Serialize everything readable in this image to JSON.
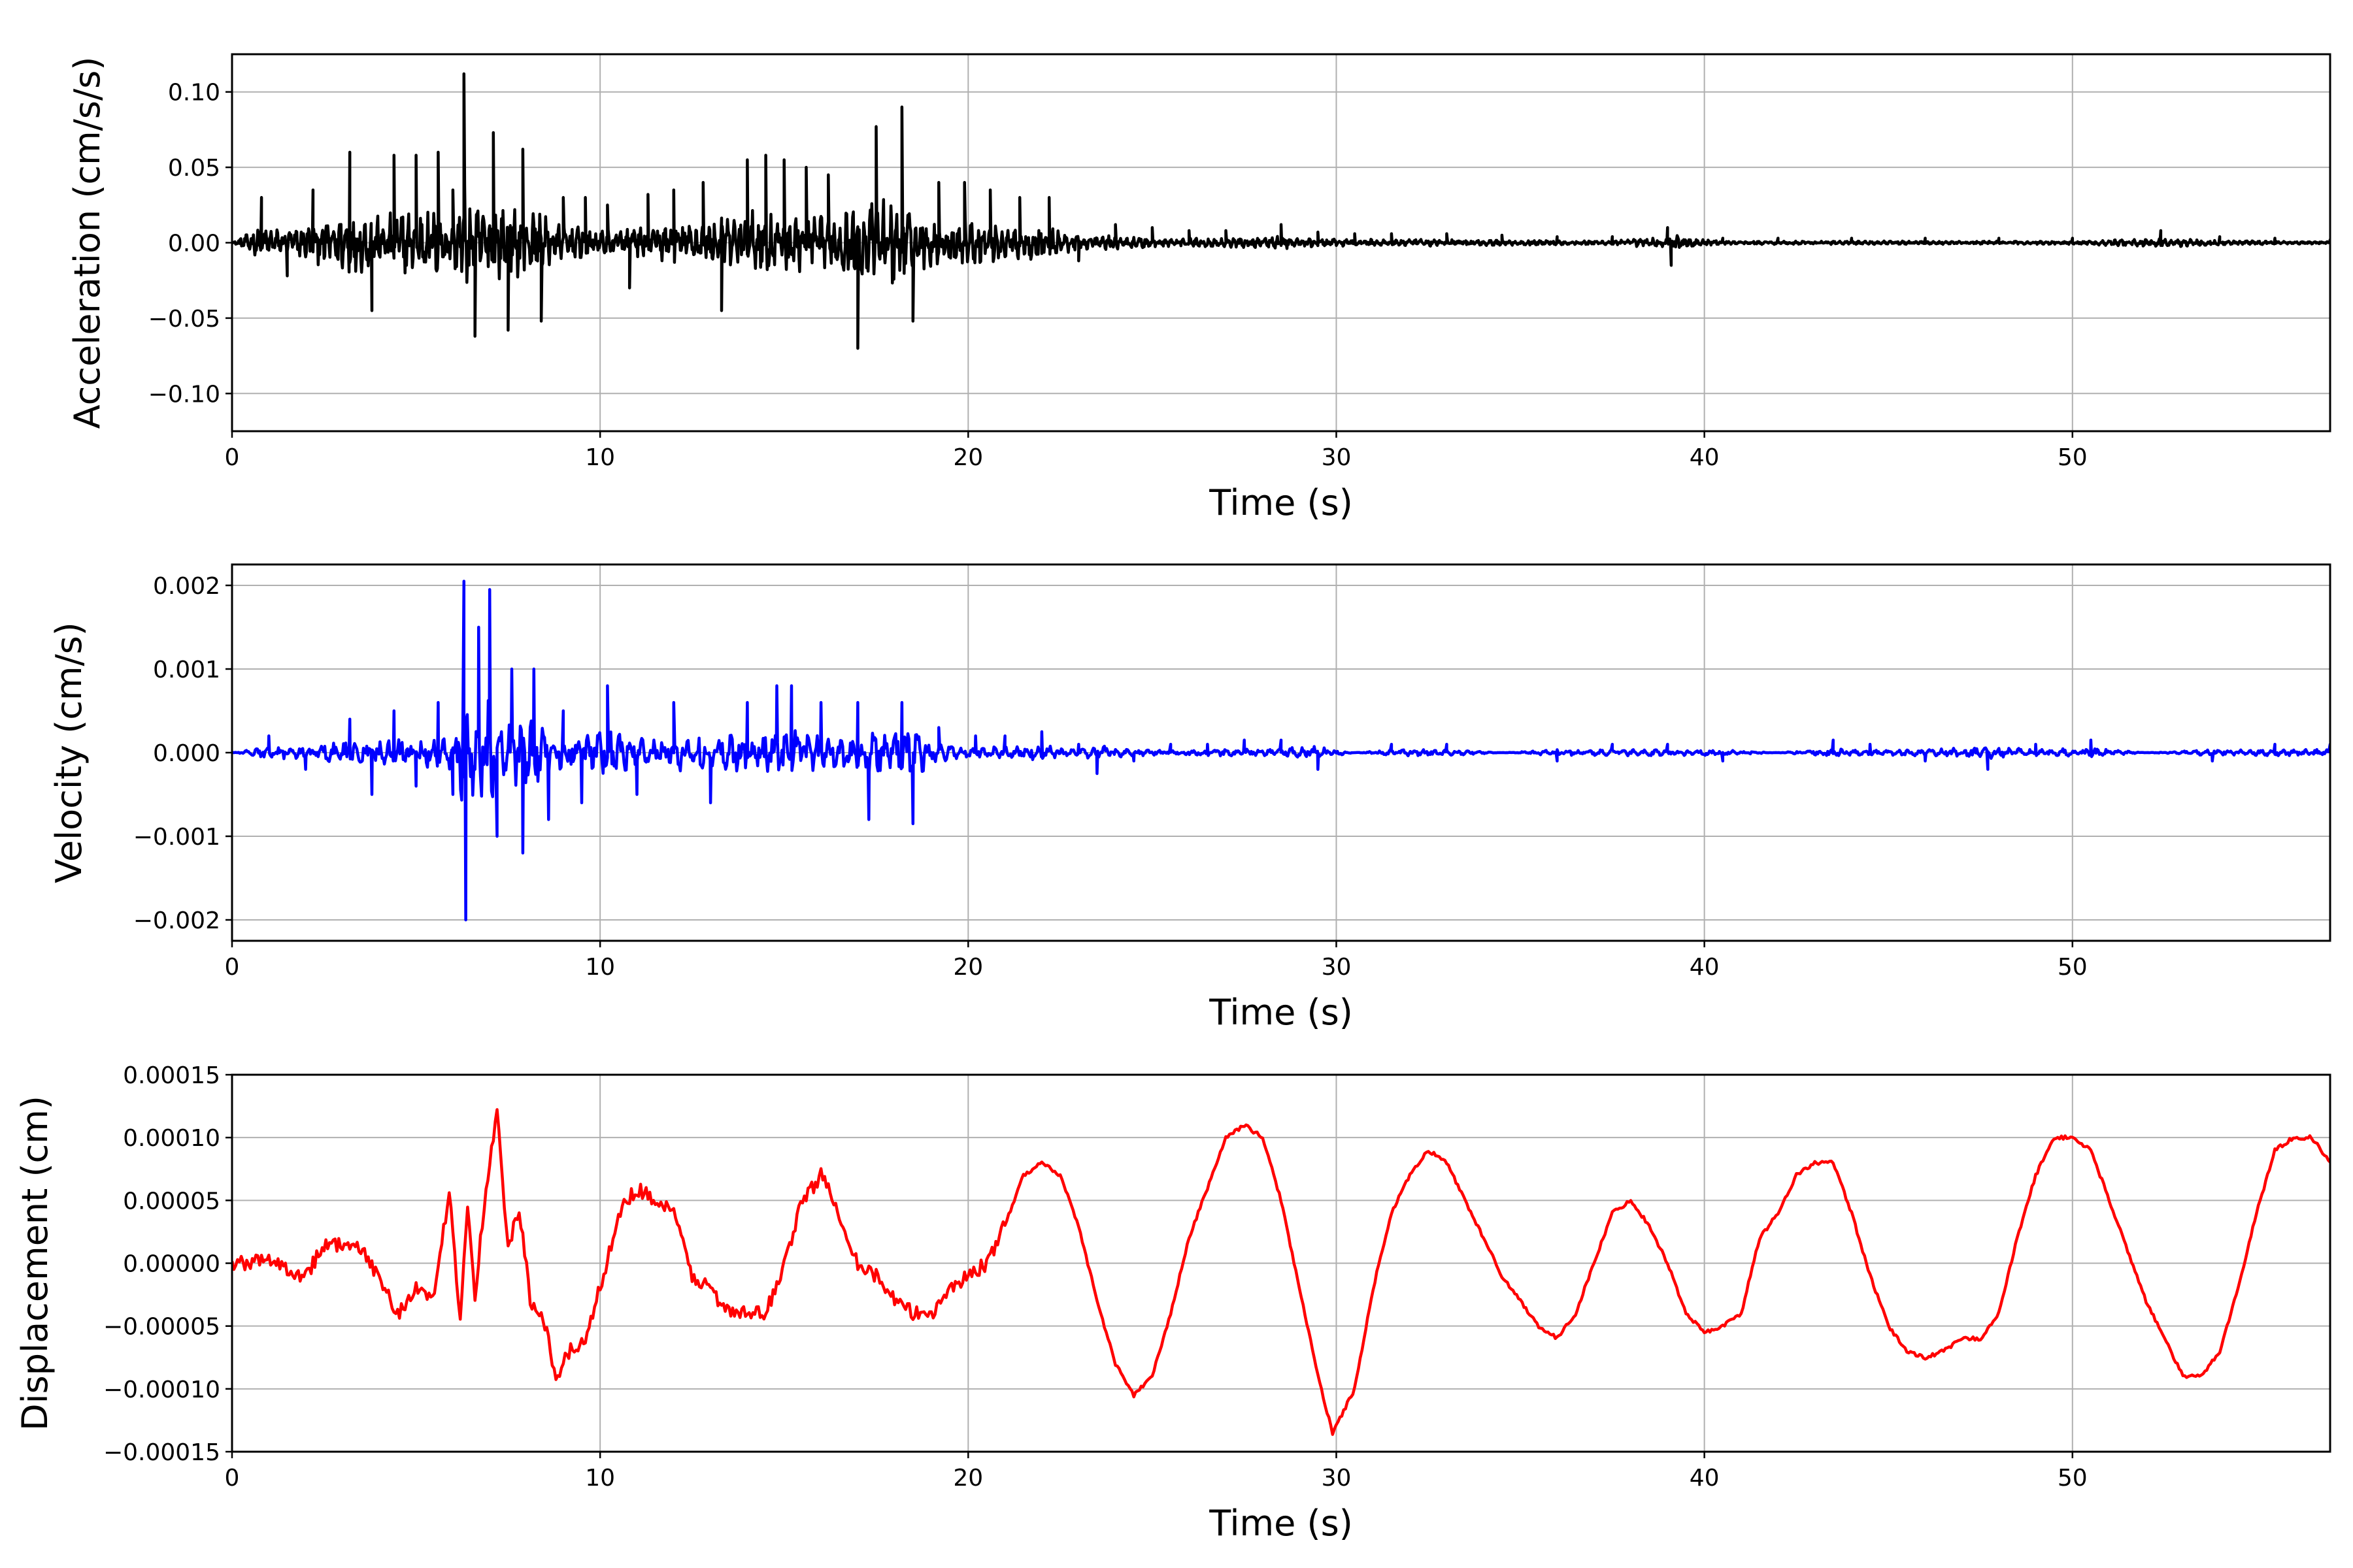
{
  "chart_data": [
    {
      "type": "line",
      "title": "",
      "xlabel": "Time (s)",
      "ylabel": "Acceleration (cm/s/s)",
      "xlim": [
        0,
        57
      ],
      "ylim": [
        -0.125,
        0.125
      ],
      "xticks": [
        0,
        10,
        20,
        30,
        40,
        50
      ],
      "xtick_labels": [
        "0",
        "10",
        "20",
        "30",
        "40",
        "50"
      ],
      "yticks": [
        -0.1,
        -0.05,
        0.0,
        0.05,
        0.1
      ],
      "ytick_labels": [
        "−0.10",
        "−0.05",
        "0.00",
        "0.05",
        "0.10"
      ],
      "grid": true,
      "color": "#000000",
      "series": [
        {
          "x": [
            0,
            0.8,
            1.5,
            2.2,
            3.2,
            3.8,
            4.4,
            5.0,
            5.6,
            6.0,
            6.3,
            6.6,
            7.1,
            7.5,
            7.9,
            8.4,
            9.0,
            9.6,
            10.2,
            10.8,
            11.3,
            12.0,
            12.8,
            13.3,
            14.0,
            14.5,
            15.0,
            15.6,
            16.2,
            17.0,
            17.5,
            18.2,
            18.5,
            19.2,
            19.9,
            20.6,
            21.4,
            22.2,
            23.0,
            24.0,
            25.0,
            26.0,
            27.0,
            28.5,
            29.5,
            30.5,
            31.5,
            33.0,
            34.5,
            36.0,
            37.5,
            39.0,
            39.1,
            40.5,
            42.0,
            44.0,
            46.0,
            48.0,
            50.0,
            52.4,
            54.0,
            55.5,
            57.0
          ],
          "y": [
            0.0,
            0.03,
            -0.022,
            0.035,
            0.06,
            -0.045,
            0.058,
            0.058,
            0.06,
            0.035,
            0.112,
            -0.062,
            0.073,
            -0.058,
            0.062,
            -0.052,
            0.03,
            0.03,
            0.025,
            -0.03,
            0.032,
            0.035,
            0.04,
            -0.045,
            0.055,
            0.058,
            0.055,
            0.05,
            0.045,
            -0.07,
            0.077,
            0.09,
            -0.052,
            0.04,
            0.04,
            0.035,
            0.03,
            0.03,
            -0.012,
            0.012,
            0.01,
            0.008,
            0.008,
            0.012,
            0.007,
            0.006,
            0.006,
            0.006,
            0.005,
            0.004,
            0.004,
            0.01,
            -0.015,
            0.003,
            0.003,
            0.003,
            0.003,
            0.003,
            0.003,
            0.008,
            0.004,
            0.003,
            0.002
          ]
        }
      ]
    },
    {
      "type": "line",
      "title": "",
      "xlabel": "Time (s)",
      "ylabel": "Velocity (cm/s)",
      "xlim": [
        0,
        57
      ],
      "ylim": [
        -0.00225,
        0.00225
      ],
      "xticks": [
        0,
        10,
        20,
        30,
        40,
        50
      ],
      "xtick_labels": [
        "0",
        "10",
        "20",
        "30",
        "40",
        "50"
      ],
      "yticks": [
        -0.002,
        -0.001,
        0.0,
        0.001,
        0.002
      ],
      "ytick_labels": [
        "−0.002",
        "−0.001",
        "0.000",
        "0.001",
        "0.002"
      ],
      "grid": true,
      "color": "#0000ff",
      "series": [
        {
          "x": [
            0,
            1.0,
            2.0,
            3.2,
            3.8,
            4.4,
            5.0,
            5.6,
            6.0,
            6.3,
            6.35,
            6.7,
            7.0,
            7.2,
            7.6,
            7.9,
            8.2,
            8.6,
            9.0,
            9.5,
            10.2,
            11.0,
            12.0,
            13.0,
            14.0,
            14.8,
            15.2,
            16.0,
            17.0,
            17.3,
            18.2,
            18.5,
            19.2,
            20.2,
            21.0,
            22.0,
            23.0,
            23.5,
            24.5,
            25.5,
            26.5,
            27.5,
            28.5,
            29.5,
            30.5,
            31.5,
            33.0,
            34.5,
            36.0,
            37.5,
            39.0,
            40.5,
            42.0,
            43.5,
            44.5,
            46.0,
            47.7,
            49.0,
            50.5,
            52.0,
            53.8,
            55.5,
            57.0
          ],
          "y": [
            0.0,
            0.0002,
            -0.0002,
            0.0004,
            -0.0005,
            0.0005,
            -0.0004,
            0.0006,
            -0.0005,
            0.00205,
            -0.002,
            0.0015,
            0.00195,
            -0.001,
            0.001,
            -0.0012,
            0.001,
            -0.0008,
            0.0005,
            -0.0006,
            0.0008,
            -0.0005,
            0.0006,
            -0.0006,
            0.0006,
            0.0008,
            0.0008,
            0.0006,
            0.0006,
            -0.0008,
            0.0006,
            -0.00085,
            0.0003,
            0.0002,
            0.0002,
            0.00025,
            0.0001,
            -0.00025,
            -0.0001,
            0.0001,
            0.0001,
            0.00015,
            0.00015,
            -0.0002,
            0.0,
            0.0001,
            0.0001,
            0.0,
            -0.0001,
            0.0001,
            0.0001,
            -0.0001,
            0.0,
            0.00015,
            0.0001,
            -0.0001,
            -0.0002,
            0.0001,
            0.00015,
            0.0,
            -0.0001,
            0.0001,
            0.0001
          ]
        }
      ]
    },
    {
      "type": "line",
      "title": "",
      "xlabel": "Time (s)",
      "ylabel": "Displacement (cm)",
      "xlim": [
        0,
        57
      ],
      "ylim": [
        -0.00015,
        0.00015
      ],
      "xticks": [
        0,
        10,
        20,
        30,
        40,
        50
      ],
      "xtick_labels": [
        "0",
        "10",
        "20",
        "30",
        "40",
        "50"
      ],
      "yticks": [
        -0.00015,
        -0.0001,
        -5e-05,
        0.0,
        5e-05,
        0.0001,
        0.00015
      ],
      "ytick_labels": [
        "−0.00015",
        "−0.00010",
        "−0.00005",
        "0.00000",
        "0.00005",
        "0.00010",
        "0.00015"
      ],
      "grid": true,
      "color": "#ff0000",
      "series": [
        {
          "x": [
            0,
            0.5,
            1.0,
            1.5,
            2.0,
            2.5,
            3.0,
            3.5,
            4.0,
            4.5,
            5.0,
            5.5,
            5.9,
            6.2,
            6.4,
            6.6,
            6.9,
            7.2,
            7.5,
            7.8,
            8.1,
            8.5,
            8.8,
            9.2,
            9.6,
            10.0,
            10.5,
            11.0,
            11.5,
            12.0,
            12.5,
            13.0,
            13.5,
            14.0,
            14.5,
            15.0,
            15.5,
            16.0,
            16.5,
            17.0,
            17.5,
            18.0,
            18.5,
            19.0,
            19.5,
            20.0,
            20.5,
            21.0,
            21.5,
            22.0,
            22.5,
            23.0,
            23.5,
            24.0,
            24.5,
            25.0,
            25.5,
            26.0,
            26.5,
            27.0,
            27.5,
            28.0,
            28.5,
            29.0,
            29.5,
            29.9,
            30.5,
            31.0,
            31.5,
            32.0,
            32.5,
            33.0,
            33.5,
            34.0,
            34.5,
            35.0,
            35.5,
            36.0,
            36.5,
            37.0,
            37.5,
            38.0,
            38.5,
            39.0,
            39.5,
            40.0,
            40.5,
            41.0,
            41.5,
            42.0,
            42.5,
            43.0,
            43.5,
            44.0,
            44.5,
            45.0,
            45.5,
            46.0,
            46.5,
            47.0,
            47.5,
            48.0,
            48.5,
            49.0,
            49.5,
            50.0,
            50.5,
            51.0,
            51.5,
            52.0,
            52.5,
            53.0,
            53.5,
            54.0,
            54.5,
            55.0,
            55.5,
            56.0,
            56.5,
            57.0
          ],
          "y": [
            0.0,
            0.0,
            5e-06,
            -5e-06,
            -1e-05,
            1.5e-05,
            1.5e-05,
            1e-05,
            -1e-05,
            -4e-05,
            -2e-05,
            -3e-05,
            6e-05,
            -4.5e-05,
            5e-05,
            -2.5e-05,
            6e-05,
            0.00012,
            1e-05,
            4.5e-05,
            -3e-05,
            -5e-05,
            -9e-05,
            -7e-05,
            -6e-05,
            -2e-05,
            4e-05,
            6e-05,
            5e-05,
            4e-05,
            -1e-05,
            -2e-05,
            -4e-05,
            -4e-05,
            -4e-05,
            0.0,
            5e-05,
            7e-05,
            4e-05,
            0.0,
            -1e-05,
            -3e-05,
            -4e-05,
            -4e-05,
            -2e-05,
            -1e-05,
            0.0,
            3e-05,
            7e-05,
            8e-05,
            7e-05,
            3e-05,
            -3e-05,
            -8e-05,
            -0.000105,
            -9e-05,
            -4e-05,
            2e-05,
            6e-05,
            0.0001,
            0.00011,
            0.0001,
            5e-05,
            -2e-05,
            -9e-05,
            -0.000135,
            -0.0001,
            -2e-05,
            4e-05,
            7e-05,
            9e-05,
            8e-05,
            5e-05,
            2e-05,
            -1e-05,
            -3e-05,
            -5e-05,
            -6e-05,
            -4e-05,
            0.0,
            4e-05,
            5e-05,
            3e-05,
            0.0,
            -4e-05,
            -5.5e-05,
            -5e-05,
            -4e-05,
            2e-05,
            4e-05,
            7e-05,
            8e-05,
            8e-05,
            4e-05,
            -1e-05,
            -5e-05,
            -7e-05,
            -7.5e-05,
            -7e-05,
            -6e-05,
            -6e-05,
            -4e-05,
            2e-05,
            7e-05,
            0.0001,
            0.0001,
            9e-05,
            5e-05,
            1e-05,
            -3e-05,
            -6e-05,
            -9e-05,
            -9e-05,
            -7e-05,
            -2e-05,
            4e-05,
            9e-05,
            0.0001,
            0.0001,
            8e-05
          ]
        }
      ]
    }
  ]
}
